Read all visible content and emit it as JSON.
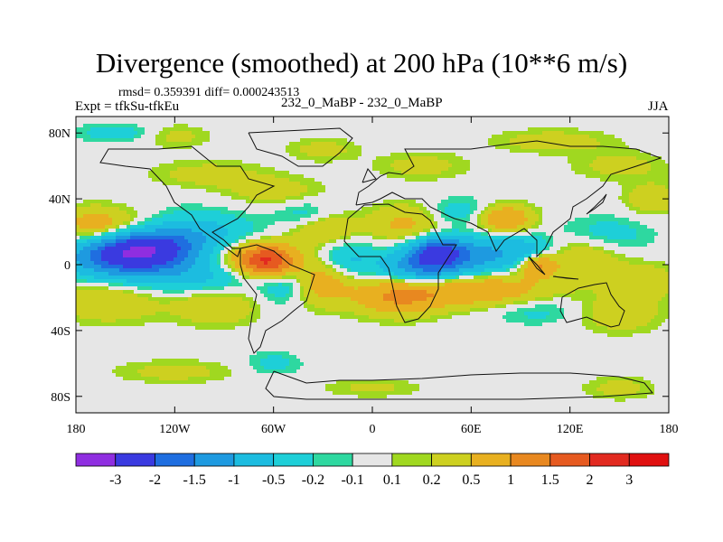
{
  "chart_data": {
    "type": "heatmap",
    "title": "Divergence (smoothed) at 200 hPa (10**6 m/s)",
    "stats": "rmsd= 0.359391 diff= 0.000243513",
    "experiment": "Expt = tfkSu-tfkEu",
    "runs": "232_0_MaBP - 232_0_MaBP",
    "season": "JJA",
    "x_axis": {
      "range": [
        -180,
        180
      ],
      "ticks": [
        -180,
        -120,
        -60,
        0,
        60,
        120,
        180
      ],
      "tick_labels": [
        "180",
        "120W",
        "60W",
        "0",
        "60E",
        "120E",
        "180"
      ]
    },
    "y_axis": {
      "range": [
        -90,
        90
      ],
      "ticks": [
        80,
        40,
        0,
        -40,
        -80
      ],
      "tick_labels": [
        "80N",
        "40N",
        "0",
        "40S",
        "80S"
      ]
    },
    "colorbar": {
      "labels": [
        "-3",
        "-2",
        "-1.5",
        "-1",
        "-0.5",
        "-0.2",
        "-0.1",
        "0.1",
        "0.2",
        "0.5",
        "1",
        "1.5",
        "2",
        "3"
      ],
      "colors": [
        "#8f2ee0",
        "#3a3ae0",
        "#1f6ee0",
        "#1e9ae0",
        "#1cbce0",
        "#1ecfd8",
        "#2ed8a0",
        "#e6e6e6",
        "#a0d820",
        "#cdd020",
        "#e8b020",
        "#e88820",
        "#e65a20",
        "#e22a20",
        "#e01010"
      ]
    },
    "fields": [
      {
        "lon": -140,
        "lat": 8,
        "v": -2.3,
        "slon": 18,
        "slat": 8
      },
      {
        "lon": -120,
        "lat": 16,
        "v": -1.2,
        "slon": 30,
        "slat": 10
      },
      {
        "lon": -165,
        "lat": 4,
        "v": -1.0,
        "slon": 18,
        "slat": 8
      },
      {
        "lon": -110,
        "lat": -6,
        "v": -0.7,
        "slon": 35,
        "slat": 8
      },
      {
        "lon": -150,
        "lat": 22,
        "v": 0.8,
        "slon": 22,
        "slat": 8
      },
      {
        "lon": -170,
        "lat": 25,
        "v": 0.5,
        "slon": 12,
        "slat": 7
      },
      {
        "lon": -62,
        "lat": 2,
        "v": 2.0,
        "slon": 12,
        "slat": 7
      },
      {
        "lon": -80,
        "lat": 4,
        "v": 0.8,
        "slon": 16,
        "slat": 8
      },
      {
        "lon": -160,
        "lat": -22,
        "v": 0.5,
        "slon": 22,
        "slat": 9
      },
      {
        "lon": -95,
        "lat": -25,
        "v": 0.5,
        "slon": 18,
        "slat": 8
      },
      {
        "lon": -50,
        "lat": -10,
        "v": -0.8,
        "slon": 12,
        "slat": 10
      },
      {
        "lon": -15,
        "lat": 3,
        "v": -0.6,
        "slon": 12,
        "slat": 8
      },
      {
        "lon": -35,
        "lat": -10,
        "v": 1.0,
        "slon": 15,
        "slat": 10
      },
      {
        "lon": -30,
        "lat": 22,
        "v": 0.6,
        "slon": 14,
        "slat": 7
      },
      {
        "lon": -40,
        "lat": 30,
        "v": -0.4,
        "slon": 12,
        "slat": 6
      },
      {
        "lon": 40,
        "lat": 8,
        "v": -2.0,
        "slon": 12,
        "slat": 6
      },
      {
        "lon": 32,
        "lat": -2,
        "v": -1.5,
        "slon": 18,
        "slat": 7
      },
      {
        "lon": 70,
        "lat": 6,
        "v": -1.0,
        "slon": 16,
        "slat": 8
      },
      {
        "lon": 95,
        "lat": 8,
        "v": -0.6,
        "slon": 10,
        "slat": 6
      },
      {
        "lon": 60,
        "lat": -15,
        "v": 1.0,
        "slon": 32,
        "slat": 7
      },
      {
        "lon": 15,
        "lat": -20,
        "v": 0.9,
        "slon": 18,
        "slat": 8
      },
      {
        "lon": 20,
        "lat": 25,
        "v": 0.6,
        "slon": 15,
        "slat": 8
      },
      {
        "lon": 80,
        "lat": 28,
        "v": 1.0,
        "slon": 12,
        "slat": 6
      },
      {
        "lon": 100,
        "lat": 0,
        "v": 1.2,
        "slon": 8,
        "slat": 5
      },
      {
        "lon": 55,
        "lat": 32,
        "v": -0.4,
        "slon": 15,
        "slat": 6
      },
      {
        "lon": 130,
        "lat": 5,
        "v": 0.5,
        "slon": 15,
        "slat": 10
      },
      {
        "lon": 140,
        "lat": 18,
        "v": -0.4,
        "slon": 20,
        "slat": 8
      },
      {
        "lon": 165,
        "lat": -10,
        "v": 0.4,
        "slon": 15,
        "slat": 8
      },
      {
        "lon": 150,
        "lat": -30,
        "v": 0.4,
        "slon": 18,
        "slat": 8
      },
      {
        "lon": 100,
        "lat": -28,
        "v": -0.3,
        "slon": 20,
        "slat": 6
      },
      {
        "lon": -60,
        "lat": 45,
        "v": 0.35,
        "slon": 20,
        "slat": 6
      },
      {
        "lon": -100,
        "lat": 55,
        "v": 0.3,
        "slon": 25,
        "slat": 6
      },
      {
        "lon": -155,
        "lat": 80,
        "v": -0.35,
        "slon": 18,
        "slat": 4
      },
      {
        "lon": -120,
        "lat": 78,
        "v": 0.3,
        "slon": 15,
        "slat": 5
      },
      {
        "lon": -30,
        "lat": 70,
        "v": 0.3,
        "slon": 15,
        "slat": 5
      },
      {
        "lon": 30,
        "lat": 60,
        "v": 0.3,
        "slon": 20,
        "slat": 6
      },
      {
        "lon": 110,
        "lat": 75,
        "v": 0.35,
        "slon": 25,
        "slat": 5
      },
      {
        "lon": 150,
        "lat": 60,
        "v": 0.3,
        "slon": 20,
        "slat": 6
      },
      {
        "lon": 170,
        "lat": 40,
        "v": 0.4,
        "slon": 12,
        "slat": 7
      },
      {
        "lon": -120,
        "lat": -65,
        "v": 0.3,
        "slon": 25,
        "slat": 5
      },
      {
        "lon": 0,
        "lat": -75,
        "v": 0.25,
        "slon": 22,
        "slat": 4
      },
      {
        "lon": 150,
        "lat": -75,
        "v": 0.3,
        "slon": 15,
        "slat": 5
      },
      {
        "lon": -60,
        "lat": -60,
        "v": -0.3,
        "slon": 12,
        "slat": 5
      }
    ]
  }
}
